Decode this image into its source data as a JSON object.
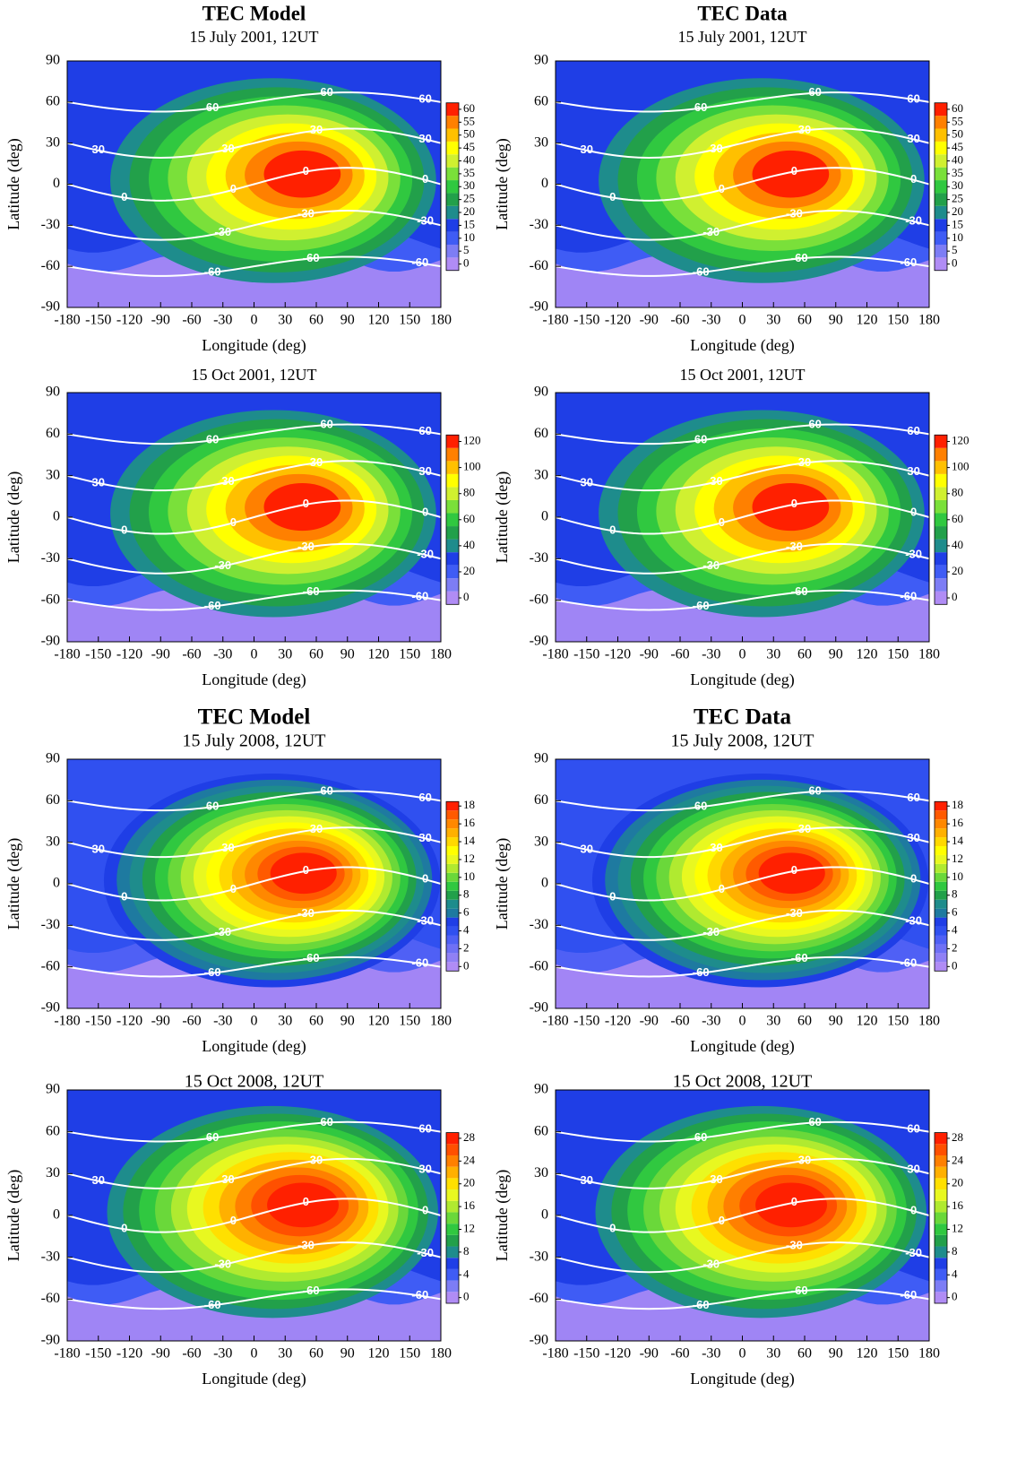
{
  "chart_data": [
    {
      "type": "contour",
      "title": "TEC Model",
      "subtitle": "15 July 2001, 12UT",
      "xlabel": "Longitude (deg)",
      "ylabel": "Latitude (deg)",
      "xlim": [
        -180,
        180
      ],
      "ylim": [
        -90,
        90
      ],
      "xticks": [
        -180,
        -150,
        -120,
        -90,
        -60,
        -30,
        0,
        30,
        60,
        90,
        120,
        150,
        180
      ],
      "yticks": [
        -90,
        -60,
        -30,
        0,
        30,
        60,
        90
      ],
      "isolines": [
        -60,
        -30,
        0,
        30,
        60
      ],
      "colorbar": {
        "levels": [
          0,
          5,
          10,
          15,
          20,
          25,
          30,
          35,
          40,
          45,
          50,
          55,
          60
        ],
        "ticks": [
          0,
          5,
          10,
          15,
          20,
          25,
          30,
          35,
          40,
          45,
          50,
          55,
          60
        ],
        "colors": [
          "#b08cf5",
          "#7d7df5",
          "#3f5cf5",
          "#1f3ee6",
          "#1e8c8c",
          "#22a04a",
          "#30c840",
          "#7ae03a",
          "#d0f030",
          "#ffff00",
          "#ffc000",
          "#ff8000",
          "#ff2000"
        ]
      }
    },
    {
      "type": "contour",
      "title": "TEC Data",
      "subtitle": "15 July 2001, 12UT",
      "xlabel": "Longitude (deg)",
      "ylabel": "Latitude (deg)",
      "xlim": [
        -180,
        180
      ],
      "ylim": [
        -90,
        90
      ],
      "xticks": [
        -180,
        -150,
        -120,
        -90,
        -60,
        -30,
        0,
        30,
        60,
        90,
        120,
        150,
        180
      ],
      "yticks": [
        -90,
        -60,
        -30,
        0,
        30,
        60,
        90
      ],
      "isolines": [
        -60,
        -30,
        0,
        30,
        60
      ],
      "colorbar": {
        "levels": [
          0,
          5,
          10,
          15,
          20,
          25,
          30,
          35,
          40,
          45,
          50,
          55,
          60
        ],
        "ticks": [
          0,
          5,
          10,
          15,
          20,
          25,
          30,
          35,
          40,
          45,
          50,
          55,
          60
        ],
        "colors": [
          "#b08cf5",
          "#7d7df5",
          "#3f5cf5",
          "#1f3ee6",
          "#1e8c8c",
          "#22a04a",
          "#30c840",
          "#7ae03a",
          "#d0f030",
          "#ffff00",
          "#ffc000",
          "#ff8000",
          "#ff2000"
        ]
      }
    },
    {
      "type": "contour",
      "subtitle": "15 Oct 2001, 12UT",
      "xlabel": "Longitude (deg)",
      "ylabel": "Latitude (deg)",
      "xlim": [
        -180,
        180
      ],
      "ylim": [
        -90,
        90
      ],
      "xticks": [
        -180,
        -150,
        -120,
        -90,
        -60,
        -30,
        0,
        30,
        60,
        90,
        120,
        150,
        180
      ],
      "yticks": [
        -90,
        -60,
        -30,
        0,
        30,
        60,
        90
      ],
      "isolines": [
        -60,
        -30,
        0,
        30,
        60
      ],
      "colorbar": {
        "levels": [
          0,
          10,
          20,
          30,
          40,
          50,
          60,
          70,
          80,
          90,
          100,
          110,
          120
        ],
        "ticks": [
          0,
          20,
          40,
          60,
          80,
          100,
          120
        ],
        "colors": [
          "#b08cf5",
          "#7d7df5",
          "#3f5cf5",
          "#1f3ee6",
          "#1e8c8c",
          "#22a04a",
          "#30c840",
          "#7ae03a",
          "#d0f030",
          "#ffff00",
          "#ffc000",
          "#ff8000",
          "#ff2000"
        ]
      }
    },
    {
      "type": "contour",
      "subtitle": "15 Oct 2001, 12UT",
      "xlabel": "Longitude (deg)",
      "ylabel": "Latitude (deg)",
      "xlim": [
        -180,
        180
      ],
      "ylim": [
        -90,
        90
      ],
      "xticks": [
        -180,
        -150,
        -120,
        -90,
        -60,
        -30,
        0,
        30,
        60,
        90,
        120,
        150,
        180
      ],
      "yticks": [
        -90,
        -60,
        -30,
        0,
        30,
        60,
        90
      ],
      "isolines": [
        -60,
        -30,
        0,
        30,
        60
      ],
      "colorbar": {
        "levels": [
          0,
          10,
          20,
          30,
          40,
          50,
          60,
          70,
          80,
          90,
          100,
          110,
          120
        ],
        "ticks": [
          0,
          20,
          40,
          60,
          80,
          100,
          120
        ],
        "colors": [
          "#b08cf5",
          "#7d7df5",
          "#3f5cf5",
          "#1f3ee6",
          "#1e8c8c",
          "#22a04a",
          "#30c840",
          "#7ae03a",
          "#d0f030",
          "#ffff00",
          "#ffc000",
          "#ff8000",
          "#ff2000"
        ]
      }
    },
    {
      "type": "contour",
      "title": "TEC Model",
      "subtitle": "15 July 2008, 12UT",
      "xlabel": "Longitude (deg)",
      "ylabel": "Latitude (deg)",
      "xlim": [
        -180,
        180
      ],
      "ylim": [
        -90,
        90
      ],
      "xticks": [
        -180,
        -150,
        -120,
        -90,
        -60,
        -30,
        0,
        30,
        60,
        90,
        120,
        150,
        180
      ],
      "yticks": [
        -90,
        -60,
        -30,
        0,
        30,
        60,
        90
      ],
      "isolines": [
        -60,
        -30,
        0,
        30,
        60
      ],
      "colorbar": {
        "levels": [
          0,
          1,
          2,
          3,
          4,
          5,
          6,
          7,
          8,
          9,
          10,
          11,
          12,
          13,
          14,
          15,
          16,
          17,
          18
        ],
        "ticks": [
          0,
          2,
          4,
          6,
          8,
          10,
          12,
          14,
          16,
          18
        ],
        "colors": [
          "#b08cf5",
          "#9080f5",
          "#6f70f5",
          "#4f60f5",
          "#3050f0",
          "#1f3ee6",
          "#1e7aa0",
          "#1e8c8c",
          "#22a04a",
          "#30c840",
          "#6ad83a",
          "#b0ea30",
          "#e8f820",
          "#ffff00",
          "#ffd800",
          "#ffb000",
          "#ff8800",
          "#ff5a00",
          "#ff2000"
        ]
      }
    },
    {
      "type": "contour",
      "title": "TEC Data",
      "subtitle": "15 July 2008, 12UT",
      "xlabel": "Longitude (deg)",
      "ylabel": "Latitude (deg)",
      "xlim": [
        -180,
        180
      ],
      "ylim": [
        -90,
        90
      ],
      "xticks": [
        -180,
        -150,
        -120,
        -90,
        -60,
        -30,
        0,
        30,
        60,
        90,
        120,
        150,
        180
      ],
      "yticks": [
        -90,
        -60,
        -30,
        0,
        30,
        60,
        90
      ],
      "isolines": [
        -60,
        -30,
        0,
        30,
        60
      ],
      "colorbar": {
        "levels": [
          0,
          1,
          2,
          3,
          4,
          5,
          6,
          7,
          8,
          9,
          10,
          11,
          12,
          13,
          14,
          15,
          16,
          17,
          18
        ],
        "ticks": [
          0,
          2,
          4,
          6,
          8,
          10,
          12,
          14,
          16,
          18
        ],
        "colors": [
          "#b08cf5",
          "#9080f5",
          "#6f70f5",
          "#4f60f5",
          "#3050f0",
          "#1f3ee6",
          "#1e7aa0",
          "#1e8c8c",
          "#22a04a",
          "#30c840",
          "#6ad83a",
          "#b0ea30",
          "#e8f820",
          "#ffff00",
          "#ffd800",
          "#ffb000",
          "#ff8800",
          "#ff5a00",
          "#ff2000"
        ]
      }
    },
    {
      "type": "contour",
      "subtitle": "15 Oct 2008, 12UT",
      "xlabel": "Longitude (deg)",
      "ylabel": "Latitude (deg)",
      "xlim": [
        -180,
        180
      ],
      "ylim": [
        -90,
        90
      ],
      "xticks": [
        -180,
        -150,
        -120,
        -90,
        -60,
        -30,
        0,
        30,
        60,
        90,
        120,
        150,
        180
      ],
      "yticks": [
        -90,
        -60,
        -30,
        0,
        30,
        60,
        90
      ],
      "isolines": [
        -60,
        -30,
        0,
        30,
        60
      ],
      "colorbar": {
        "levels": [
          0,
          2,
          4,
          6,
          8,
          10,
          12,
          14,
          16,
          18,
          20,
          22,
          24,
          26,
          28
        ],
        "ticks": [
          0,
          4,
          8,
          12,
          16,
          20,
          24,
          28
        ],
        "colors": [
          "#b08cf5",
          "#7d7df5",
          "#3f5cf5",
          "#1f3ee6",
          "#1e8c8c",
          "#22a04a",
          "#30c840",
          "#6ad83a",
          "#b0ea30",
          "#e8f820",
          "#ffe000",
          "#ffb000",
          "#ff8000",
          "#ff5000",
          "#ff2000"
        ]
      }
    },
    {
      "type": "contour",
      "subtitle": "15 Oct 2008, 12UT",
      "xlabel": "Longitude (deg)",
      "ylabel": "Latitude (deg)",
      "xlim": [
        -180,
        180
      ],
      "ylim": [
        -90,
        90
      ],
      "xticks": [
        -180,
        -150,
        -120,
        -90,
        -60,
        -30,
        0,
        30,
        60,
        90,
        120,
        150,
        180
      ],
      "yticks": [
        -90,
        -60,
        -30,
        0,
        30,
        60,
        90
      ],
      "isolines": [
        -60,
        -30,
        0,
        30,
        60
      ],
      "colorbar": {
        "levels": [
          0,
          2,
          4,
          6,
          8,
          10,
          12,
          14,
          16,
          18,
          20,
          22,
          24,
          26,
          28
        ],
        "ticks": [
          0,
          4,
          8,
          12,
          16,
          20,
          24,
          28
        ],
        "colors": [
          "#b08cf5",
          "#7d7df5",
          "#3f5cf5",
          "#1f3ee6",
          "#1e8c8c",
          "#22a04a",
          "#30c840",
          "#6ad83a",
          "#b0ea30",
          "#e8f820",
          "#ffe000",
          "#ffb000",
          "#ff8000",
          "#ff5000",
          "#ff2000"
        ]
      }
    }
  ]
}
